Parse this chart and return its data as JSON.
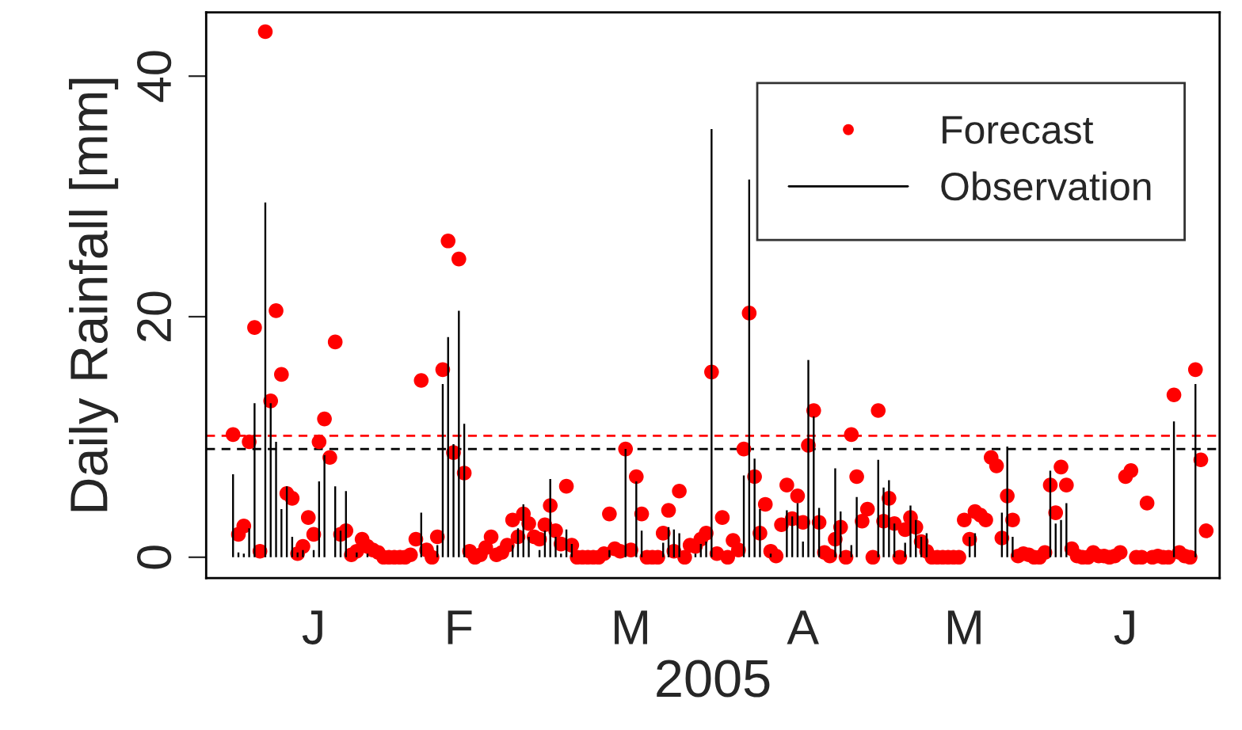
{
  "chart_data": {
    "type": "scatter",
    "xlabel": "2005",
    "ylabel": "Daily Rainfall [mm]",
    "categories": [
      null,
      null,
      null,
      null,
      null,
      null,
      null,
      null,
      null,
      null,
      null,
      null,
      null,
      null,
      null,
      "J",
      null,
      null,
      null,
      null,
      null,
      null,
      null,
      null,
      null,
      null,
      null,
      null,
      null,
      null,
      null,
      null,
      null,
      null,
      null,
      null,
      null,
      null,
      null,
      null,
      null,
      null,
      "F",
      null,
      null,
      null,
      null,
      null,
      null,
      null,
      null,
      null,
      null,
      null,
      null,
      null,
      null,
      null,
      null,
      null,
      null,
      null,
      null,
      null,
      null,
      null,
      null,
      null,
      null,
      null,
      null,
      null,
      null,
      null,
      "M",
      null,
      null,
      null,
      null,
      null,
      null,
      null,
      null,
      null,
      null,
      null,
      null,
      null,
      null,
      null,
      null,
      null,
      null,
      null,
      null,
      null,
      null,
      null,
      null,
      null,
      null,
      null,
      null,
      null,
      null,
      null,
      "A",
      null,
      null,
      null,
      null,
      null,
      null,
      null,
      null,
      null,
      null,
      null,
      null,
      null,
      null,
      null,
      null,
      null,
      null,
      null,
      null,
      null,
      null,
      null,
      null,
      null,
      null,
      null,
      null,
      null,
      "M",
      null,
      null,
      null,
      null,
      null,
      null,
      null,
      null,
      null,
      null,
      null,
      null,
      null,
      null,
      null,
      null,
      null,
      null,
      null,
      null,
      null,
      null,
      null,
      null,
      null,
      null,
      null,
      null,
      null,
      "J",
      null,
      null,
      null,
      null,
      null,
      null,
      null,
      null,
      null,
      null,
      null,
      null,
      null,
      null,
      null
    ],
    "ylim": [
      -1.74,
      45.3
    ],
    "yticks": [
      0,
      20,
      40
    ],
    "grid": false,
    "legend": "top right",
    "ref_lines": [
      {
        "axis": "y",
        "value": 10.1,
        "color": "#ff0000",
        "line_style": "dashed"
      },
      {
        "axis": "y",
        "value": 9.0,
        "color": "#000000",
        "line_style": "dashed"
      }
    ],
    "series": [
      {
        "name": "Forecast",
        "color": "#ff0000",
        "marker": "circle",
        "values": [
          10.2,
          1.9,
          2.6,
          9.6,
          19.1,
          0.5,
          43.7,
          13,
          20.5,
          15.2,
          5.3,
          4.9,
          0.3,
          0.9,
          3.3,
          1.9,
          9.6,
          11.5,
          8.3,
          17.9,
          1.9,
          2.2,
          0.2,
          0.5,
          1.5,
          0.9,
          0.6,
          0.4,
          0,
          0,
          0,
          0,
          0,
          0.2,
          1.5,
          14.7,
          0.6,
          0,
          1.7,
          15.6,
          26.3,
          8.7,
          24.8,
          7,
          0.5,
          0,
          0.2,
          0.8,
          1.7,
          0.2,
          0.4,
          1,
          3.1,
          1.7,
          3.6,
          2.8,
          1.7,
          1.5,
          2.7,
          4.3,
          2.2,
          1.1,
          5.9,
          1,
          0,
          0,
          0,
          0,
          0,
          0.3,
          3.6,
          0.7,
          0.5,
          9,
          0.6,
          6.7,
          3.6,
          0,
          0,
          0,
          2,
          3.9,
          0.5,
          5.5,
          0,
          1,
          0.9,
          1.5,
          2,
          15.4,
          0.3,
          3.3,
          0,
          1.4,
          0.6,
          9,
          20.3,
          6.7,
          2,
          4.4,
          0.5,
          0.1,
          2.7,
          6,
          3.2,
          5.1,
          2.9,
          9.3,
          12.2,
          2.9,
          0.4,
          0.1,
          1.5,
          2.5,
          0,
          10.2,
          6.7,
          3,
          4,
          0,
          12.2,
          3,
          4.9,
          2.8,
          0,
          2.3,
          3.3,
          2.5,
          1.3,
          0.5,
          0,
          0,
          0,
          0,
          0,
          0,
          3.1,
          1.5,
          3.8,
          3.5,
          3.1,
          8.3,
          7.6,
          1.6,
          5.1,
          3.1,
          0.1,
          0.3,
          0.2,
          0,
          0,
          0.4,
          6,
          3.7,
          7.5,
          6,
          0.7,
          0.1,
          0,
          0,
          0.4,
          0.1,
          0.1,
          0,
          0.1,
          0.4,
          6.7,
          7.2,
          0,
          0,
          4.5,
          0,
          0.1,
          0,
          0,
          13.5,
          0.4,
          0.1,
          0,
          15.6,
          8.1,
          2.2
        ]
      },
      {
        "name": "Observation",
        "type": "bar",
        "color": "#000000",
        "values": [
          6.9,
          0.4,
          0.3,
          2.4,
          12.8,
          null,
          29.5,
          12.8,
          9.6,
          4,
          5.9,
          1.7,
          0.4,
          0.6,
          null,
          0.6,
          6.3,
          8.5,
          null,
          5.9,
          2.2,
          5.5,
          null,
          0.4,
          null,
          0.3,
          null,
          null,
          null,
          null,
          null,
          null,
          null,
          null,
          null,
          3.7,
          null,
          null,
          1,
          14.4,
          18.3,
          9.4,
          20.5,
          11.1,
          null,
          null,
          null,
          null,
          null,
          null,
          null,
          null,
          1,
          2.4,
          4.4,
          1.7,
          null,
          0.6,
          2.2,
          6.5,
          1.7,
          0.3,
          2.3,
          1.1,
          null,
          null,
          null,
          null,
          null,
          null,
          0.6,
          null,
          null,
          9,
          null,
          6.3,
          2.2,
          null,
          null,
          null,
          1.2,
          2.5,
          2.3,
          2,
          null,
          null,
          0.3,
          1.1,
          1.3,
          35.6,
          null,
          null,
          null,
          null,
          null,
          6.8,
          31.4,
          8.2,
          4,
          null,
          0.3,
          null,
          null,
          3.9,
          3.4,
          4.5,
          1.3,
          16.4,
          11.7,
          4.1,
          null,
          null,
          7.4,
          3.8,
          null,
          1,
          5,
          null,
          null,
          null,
          8.1,
          5.8,
          6.4,
          2.8,
          null,
          1.2,
          4.3,
          3.1,
          1.7,
          2,
          null,
          null,
          null,
          null,
          null,
          null,
          null,
          1.7,
          2,
          null,
          null,
          null,
          null,
          3.7,
          9.2,
          1.7,
          null,
          null,
          null,
          null,
          null,
          null,
          7.2,
          2.8,
          3.1,
          4.5,
          null,
          null,
          null,
          null,
          null,
          null,
          null,
          null,
          null,
          null,
          null,
          null,
          null,
          null,
          null,
          null,
          null,
          null,
          null,
          11.3,
          null,
          null,
          null,
          14.4,
          null,
          null
        ]
      }
    ]
  }
}
